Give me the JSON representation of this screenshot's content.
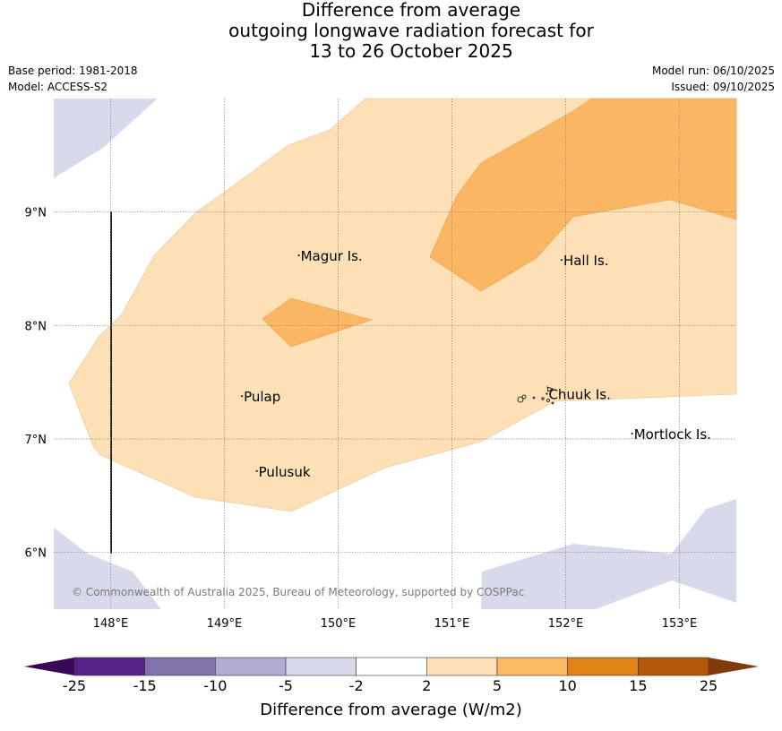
{
  "header": {
    "title_lines": [
      "Difference from average",
      "outgoing longwave radiation forecast for",
      "13 to 26 October 2025"
    ],
    "base_period": "Base period: 1981-2018",
    "model": "Model: ACCESS-S2",
    "model_run": "Model run: 06/10/2025",
    "issued": "Issued: 09/10/2025"
  },
  "map": {
    "lon_range": [
      147.5,
      153.5
    ],
    "lat_range": [
      5.5,
      10.0
    ],
    "lon_ticks": [
      "148°E",
      "149°E",
      "150°E",
      "151°E",
      "152°E",
      "153°E"
    ],
    "lat_ticks": [
      "9°N",
      "8°N",
      "7°N",
      "6°N"
    ],
    "copyright": "© Commonwealth of Australia 2025, Bureau of Meteorology, supported by COSPPac",
    "places": [
      {
        "name": "Magur Is.",
        "lon": 149.67,
        "lat": 8.57
      },
      {
        "name": "Hall Is.",
        "lon": 151.98,
        "lat": 8.53
      },
      {
        "name": "Pulap",
        "lon": 149.17,
        "lat": 7.33
      },
      {
        "name": "Chuuk Is.",
        "lon": 151.85,
        "lat": 7.35
      },
      {
        "name": "Mortlock Is.",
        "lon": 152.6,
        "lat": 7.0
      },
      {
        "name": "Pulusuk",
        "lon": 149.3,
        "lat": 6.67
      }
    ],
    "contour_regions": [
      {
        "category": "2 to 5",
        "color": "#fde0b6",
        "desc": "large positive anomaly region over central/northern area"
      },
      {
        "category": "5 to 10",
        "color": "#fbb663",
        "desc": "NE band and small patch near 149.5E 8N"
      },
      {
        "category": "-5 to -2",
        "color": "#d8d9ea",
        "desc": "NW corner, SW corner, SE area"
      }
    ]
  },
  "colorbar": {
    "label": "Difference from average (W/m2)",
    "ticks": [
      "-25",
      "-15",
      "-10",
      "-5",
      "-2",
      "2",
      "5",
      "10",
      "15",
      "25"
    ],
    "colors": [
      "#3c0656",
      "#552289",
      "#8073ac",
      "#b2abd2",
      "#d8daeb",
      "#ffffff",
      "#fee0b6",
      "#fdb863",
      "#e08214",
      "#b35806",
      "#7f3b08"
    ]
  }
}
